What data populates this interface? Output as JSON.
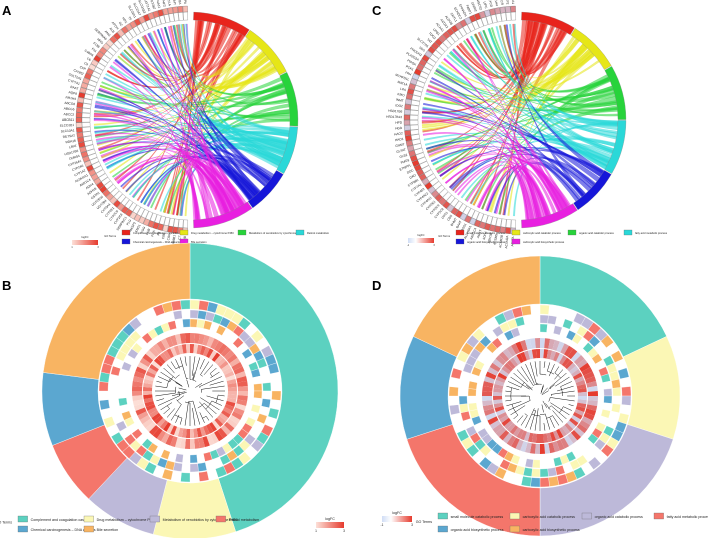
{
  "figure": {
    "panels": [
      {
        "letter": "A"
      },
      {
        "letter": "B"
      },
      {
        "letter": "C"
      },
      {
        "letter": "D"
      }
    ]
  },
  "chart_data": [
    {
      "panel": "A",
      "type": "chord",
      "legend_title": "GO Terms",
      "colorbar": {
        "label": "logFC",
        "min": "1",
        "max": "3",
        "low_color": "#fce0d8",
        "high_color": "#e63b2e"
      },
      "terms": [
        {
          "name": "Complement and coagulation cascades",
          "color": "#e8241c",
          "share": 0.18
        },
        {
          "name": "Drug metabolism – cytochrome P450",
          "color": "#e6e617",
          "share": 0.17
        },
        {
          "name": "Metabolism of xenobiotics by cytochrome P450",
          "color": "#27d33b",
          "share": 0.17
        },
        {
          "name": "Retinol metabolism",
          "color": "#2ad8d8",
          "share": 0.15
        },
        {
          "name": "Chemical carcinogenesis – DNA adducts",
          "color": "#1616d9",
          "share": 0.14
        },
        {
          "name": "Bile secretion",
          "color": "#e81fe0",
          "share": 0.19
        }
      ],
      "genes": [
        "C1QB",
        "C7",
        "CYP8B1",
        "C8A",
        "C8B",
        "F9",
        "FGA",
        "FGB",
        "FGG",
        "KNG1",
        "MASP2",
        "PLG",
        "SERPINC1",
        "CYP2C8",
        "CYP2C9",
        "CYP2E1",
        "CYP3A4",
        "UGT2B4",
        "UGT2B10",
        "GSTA1",
        "ADH1B",
        "ADH4",
        "AKR1C4",
        "ALDH1A1",
        "CYP1A2",
        "CYP2A6",
        "CYP26A1",
        "DHRS4",
        "HSD17B6",
        "LRAT",
        "RDH16",
        "RETSAT",
        "SLC10A1",
        "SLCO1B1",
        "ABCB11",
        "ABCC2",
        "ABCG5",
        "ABCG8",
        "NR1H4",
        "AQP9",
        "BAAT",
        "CYP7A1",
        "SULT2A1",
        "CFHR2",
        "CFP",
        "C9",
        "C6",
        "C4BPA",
        "F11",
        "F13B",
        "HRG",
        "SERPINA5",
        "ANG",
        "ALB",
        "APOH",
        "GC",
        "HPX",
        "TF",
        "SLC22A1",
        "SLC22A7",
        "SLCO1B3",
        "UGT1A1",
        "UGT2B7",
        "CYP4A11",
        "CYP4F2",
        "MAT1A",
        "INMT",
        "ACSM2A",
        "LPA"
      ]
    },
    {
      "panel": "B",
      "type": "circular-heatmap-dendrogram",
      "legend_title": "GO Terms",
      "colorbar": {
        "label": "logFC",
        "min": "1",
        "max": "3",
        "low_color": "#fce0d8",
        "high_color": "#e63b2e"
      },
      "terms": [
        {
          "name": "Complement and coagulation cascades",
          "color": "#5cd1c0",
          "share": 0.45
        },
        {
          "name": "Drug metabolism – cytochrome P450",
          "color": "#fbf7b5",
          "share": 0.09
        },
        {
          "name": "Metabolism of xenobiotics by cytochrome P450",
          "color": "#bdb9d9",
          "share": 0.08
        },
        {
          "name": "Retinol metabolism",
          "color": "#f4766b",
          "share": 0.07
        },
        {
          "name": "Chemical carcinogenesis – DNA adducts",
          "color": "#5ba7d0",
          "share": 0.08
        },
        {
          "name": "Bile secretion",
          "color": "#f8b462",
          "share": 0.23
        }
      ]
    },
    {
      "panel": "C",
      "type": "chord",
      "legend_title": "GO Terms",
      "colorbar": {
        "label": "logFC",
        "min": "-1",
        "max": "3",
        "low_color": "#d0ddf5",
        "high_color": "#e63b2e"
      },
      "terms": [
        {
          "name": "small molecule catabolic process",
          "color": "#e8241c",
          "share": 0.17
        },
        {
          "name": "carboxylic acid catabolic process",
          "color": "#e6e617",
          "share": 0.16
        },
        {
          "name": "organic acid catabolic process",
          "color": "#27d33b",
          "share": 0.17
        },
        {
          "name": "fatty acid metabolic process",
          "color": "#2ad8d8",
          "share": 0.17
        },
        {
          "name": "organic acid biosynthetic process",
          "color": "#1616d9",
          "share": 0.15
        },
        {
          "name": "carboxylic acid biosynthetic process",
          "color": "#e81fe0",
          "share": 0.18
        }
      ],
      "genes": [
        "ACADL",
        "ACSM2A",
        "ACSM2B",
        "ACSM5",
        "ADH1B",
        "ADH4",
        "AGXT",
        "AKR1C4",
        "ALDH8A1",
        "ASS1",
        "BAAT",
        "BHMT",
        "CBS",
        "CPS1",
        "CYP2C8",
        "CYP2C9",
        "CYP2E1",
        "CYP4A11",
        "CYP4A22",
        "CYP4F2",
        "CYP7A1",
        "CYP8B1",
        "DAO",
        "DDC",
        "ETNPPL",
        "FMO3",
        "GLS2",
        "GLYAT",
        "GNMT",
        "HAO1",
        "HAO2",
        "HGD",
        "HPD",
        "HSD17B13",
        "HSD17B6",
        "IDO2",
        "INMT",
        "KMO",
        "LPA",
        "MAT1A",
        "MTHFD1L",
        "PAH",
        "PCK1",
        "PIPOX",
        "PLA2G2A",
        "PRODH2",
        "SDS",
        "SLC27A5",
        "TAT",
        "TDO2",
        "UPB1",
        "ACAA1",
        "ACOX2",
        "ALDOB",
        "CRYL1",
        "ECHDC2",
        "EHHADH",
        "FABP1",
        "GNPAT",
        "HMGCS2",
        "LIPC",
        "MLYCD",
        "NR1H4",
        "PECR",
        "SCP2",
        "SULT2A1"
      ]
    },
    {
      "panel": "D",
      "type": "circular-heatmap-dendrogram",
      "legend_title": "GO Terms",
      "colorbar": {
        "label": "logFC",
        "min": "-1",
        "max": "3",
        "low_color": "#d0ddf5",
        "high_color": "#e63b2e"
      },
      "terms": [
        {
          "name": "small molecule catabolic process",
          "color": "#5cd1c0",
          "share": 0.18
        },
        {
          "name": "carboxylic acid catabolic process",
          "color": "#fbf7b5",
          "share": 0.12
        },
        {
          "name": "organic acid catabolic process",
          "color": "#bdb9d9",
          "share": 0.2
        },
        {
          "name": "fatty acid metabolic process",
          "color": "#f4766b",
          "share": 0.2
        },
        {
          "name": "organic acid biosynthetic process",
          "color": "#5ba7d0",
          "share": 0.12
        },
        {
          "name": "carboxylic acid biosynthetic process",
          "color": "#f8b462",
          "share": 0.18
        }
      ]
    }
  ]
}
